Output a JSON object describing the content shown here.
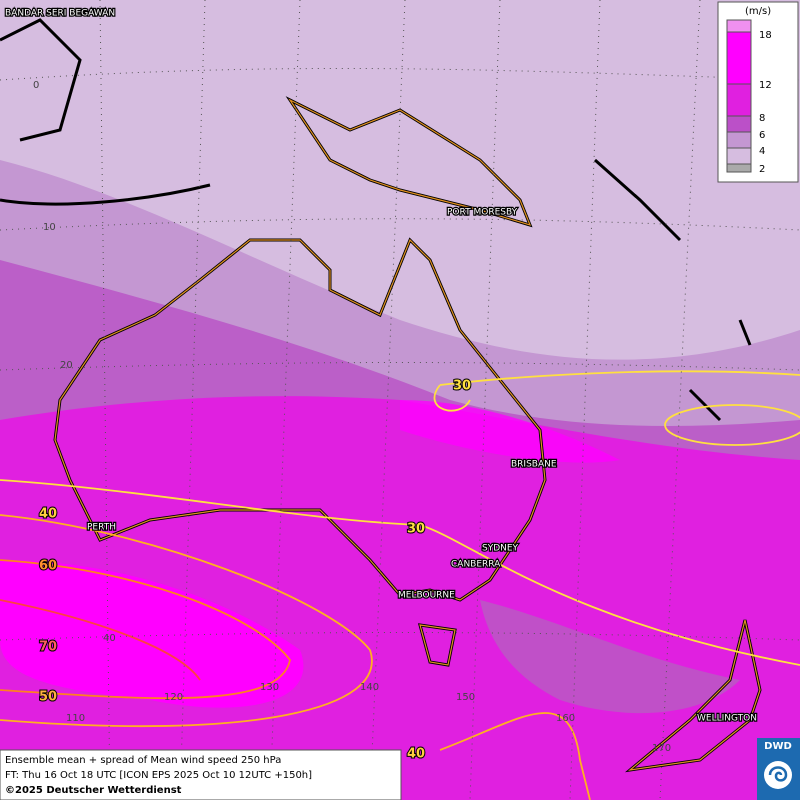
{
  "cities": [
    "BANDAR SERI BEGAWAN",
    "PORT MORESBY",
    "BRISBANE",
    "PERTH",
    "SYDNEY",
    "CANBERRA",
    "MELBOURNE",
    "WELLINGTON"
  ],
  "grid_labels": [
    "0",
    "10",
    "20",
    "40",
    "110",
    "120",
    "130",
    "140",
    "150",
    "160",
    "170"
  ],
  "contour_labels": [
    "30",
    "30",
    "40",
    "60",
    "70",
    "50",
    "40"
  ],
  "legend": {
    "unit": "(m/s)",
    "ticks": [
      "18",
      "12",
      "8",
      "6",
      "4",
      "2"
    ]
  },
  "caption": {
    "lines": [
      "Ensemble mean + spread of Mean wind speed 250 hPa",
      "FT: Thu 16 Oct 18 UTC [ICON EPS 2025 Oct 10 12UTC +150h]",
      "©2025 Deutscher Wetterdienst"
    ]
  },
  "logo": "DWD"
}
